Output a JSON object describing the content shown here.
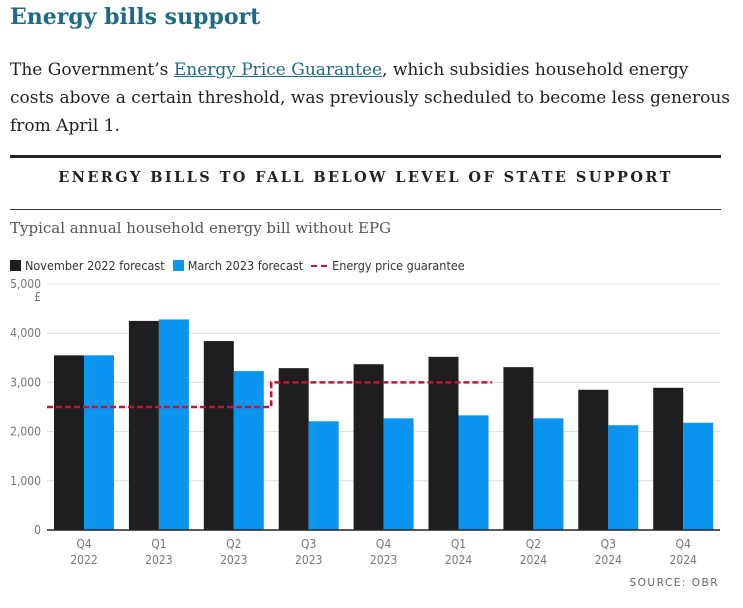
{
  "heading": "Energy bills support",
  "intro": {
    "before": "The Government’s ",
    "link": "Energy Price Guarantee",
    "after": ", which subsidies household energy costs above a certain threshold, was previously scheduled to become less generous from April 1."
  },
  "chart_title": "ENERGY BILLS TO FALL BELOW LEVEL OF STATE SUPPORT",
  "subtitle": "Typical annual household energy bill without EPG",
  "source": "SOURCE: OBR",
  "colors": {
    "nov": "#1e1e1e",
    "mar": "#0a96f0",
    "epg": "#c0143c"
  },
  "chart_data": {
    "type": "bar",
    "title": "ENERGY BILLS TO FALL BELOW LEVEL OF STATE SUPPORT",
    "ylabel": "£",
    "ylim": [
      0,
      5000
    ],
    "yticks": [
      "0",
      "1,000",
      "2,000",
      "3,000",
      "4,000",
      "5,000"
    ],
    "categories": [
      [
        "Q4",
        "2022"
      ],
      [
        "Q1",
        "2023"
      ],
      [
        "Q2",
        "2023"
      ],
      [
        "Q3",
        "2023"
      ],
      [
        "Q4",
        "2023"
      ],
      [
        "Q1",
        "2024"
      ],
      [
        "Q2",
        "2024"
      ],
      [
        "Q3",
        "2024"
      ],
      [
        "Q4",
        "2024"
      ]
    ],
    "series": [
      {
        "name": "November 2022 forecast",
        "values": [
          3550,
          4250,
          3840,
          3290,
          3370,
          3520,
          3310,
          2850,
          2890
        ]
      },
      {
        "name": "March 2023 forecast",
        "values": [
          3550,
          4280,
          3230,
          2210,
          2270,
          2330,
          2270,
          2130,
          2180
        ]
      }
    ],
    "line": {
      "name": "Energy price guarantee",
      "values": [
        2500,
        2500,
        2500,
        3000,
        3000,
        3000
      ]
    },
    "grid": true,
    "legend": "top-left"
  }
}
